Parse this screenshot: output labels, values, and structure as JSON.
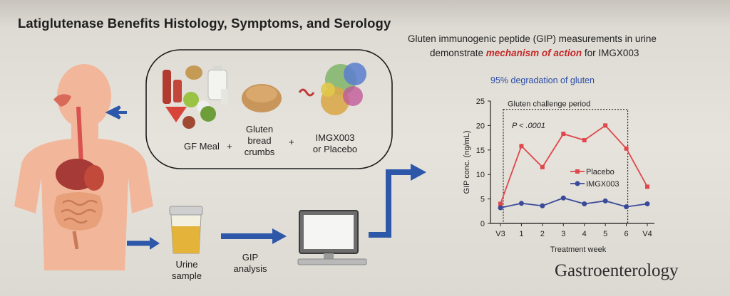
{
  "title": "Latiglutenase Benefits Histology, Symptoms, and Serology",
  "caption": {
    "line1": "Gluten immunogenic peptide (GIP) measurements in urine",
    "line2_prefix": "demonstrate ",
    "line2_highlight": "mechanism of action",
    "line2_suffix": " for IMGX003"
  },
  "subtitle": "95% degradation of gluten",
  "meal": {
    "gf_meal": "GF Meal",
    "plus": "+",
    "gluten": [
      "Gluten",
      "bread",
      "crumbs"
    ],
    "drug": [
      "IMGX003",
      "or Placebo"
    ]
  },
  "steps": {
    "urine": [
      "Urine",
      "sample"
    ],
    "gip": [
      "GIP",
      "analysis"
    ]
  },
  "journal": "Gastroenterology",
  "colors": {
    "placebo": "#e0474c",
    "imgx003": "#3a4a9a",
    "arrow": "#2d57a8",
    "highlight": "#c62828"
  },
  "chart_data": {
    "type": "line",
    "xlabel": "Treatment week",
    "ylabel": "GIP conc. (ng/mL)",
    "categories": [
      "V3",
      "1",
      "2",
      "3",
      "4",
      "5",
      "6",
      "V4"
    ],
    "ylim": [
      0,
      25
    ],
    "yticks": [
      "0",
      "5",
      "10",
      "15",
      "20",
      "25"
    ],
    "annotation_period": "Gluten challenge period",
    "annotation_p": "P < .0001",
    "legend_position": "center-right",
    "series": [
      {
        "name": "Placebo",
        "values": [
          4.0,
          15.8,
          11.5,
          18.3,
          17.0,
          20.0,
          15.3,
          7.5
        ]
      },
      {
        "name": "IMGX003",
        "values": [
          3.2,
          4.1,
          3.6,
          5.2,
          4.0,
          4.6,
          3.4,
          4.0
        ]
      }
    ]
  }
}
